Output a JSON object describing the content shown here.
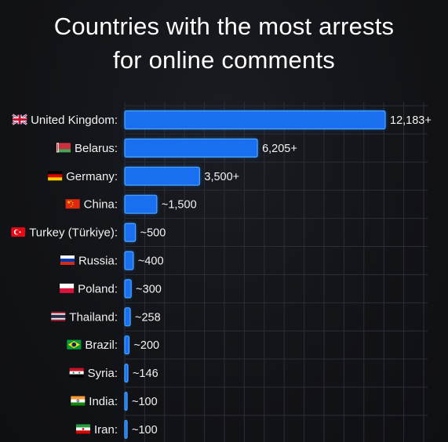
{
  "chart_data": {
    "type": "bar",
    "orientation": "horizontal",
    "title_lines": [
      "Countries with the most arrests",
      "for online comments"
    ],
    "categories": [
      "United Kingdom:",
      "Belarus:",
      "Germany:",
      "China:",
      "Turkey (Türkiye):",
      "Russia:",
      "Poland:",
      "Thailand:",
      "Brazil:",
      "Syria:",
      "India:",
      "Iran:"
    ],
    "values": [
      12183,
      6205,
      3500,
      1500,
      500,
      400,
      300,
      258,
      200,
      146,
      100,
      100
    ],
    "value_labels": [
      "12,183+",
      "6,205+",
      "3,500+",
      "~1,500",
      "~500",
      "~400",
      "~300",
      "~258",
      "~200",
      "~146",
      "~100",
      "~100"
    ],
    "flag_icons": [
      "uk-flag-icon",
      "belarus-flag-icon",
      "germany-flag-icon",
      "china-flag-icon",
      "turkey-flag-icon",
      "russia-flag-icon",
      "poland-flag-icon",
      "thailand-flag-icon",
      "brazil-flag-icon",
      "syria-flag-icon",
      "india-flag-icon",
      "iran-flag-icon"
    ],
    "xlim": [
      0,
      12183
    ],
    "grid": true,
    "legend": "none",
    "colors": {
      "bar_fill": "#1a6ff0",
      "bar_edge": "#4aa8ff",
      "bar_glow": "#1e7bff",
      "grid": "#2b2e36",
      "background": "#131418",
      "text": "#f2f2f2"
    }
  }
}
